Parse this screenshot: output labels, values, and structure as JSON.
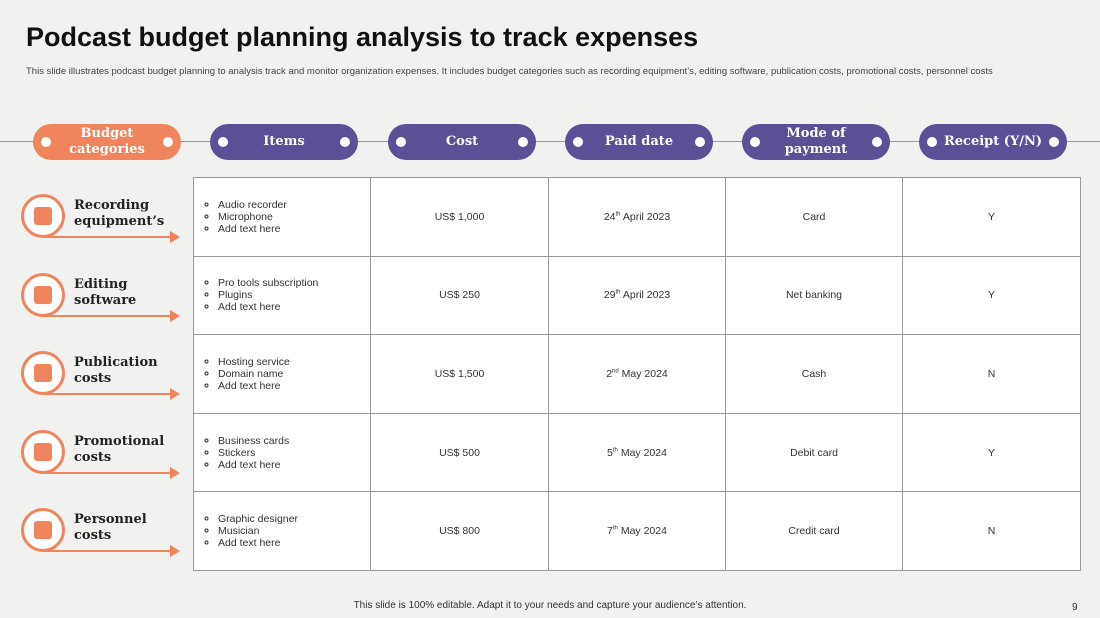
{
  "header": {
    "title": "Podcast budget planning analysis to track expenses",
    "subtitle": "This slide illustrates podcast budget planning to analysis track and monitor organization expenses. It includes budget categories such as recording equipment’s, editing software, publication costs, promotional costs, personnel costs"
  },
  "table": {
    "columns": [
      "Budget categories",
      "Items",
      "Cost",
      "Paid date",
      "Mode of payment",
      "Receipt (Y/N)"
    ],
    "rows": [
      {
        "category": "Recording equipment’s",
        "items": [
          "Audio recorder",
          "Microphone",
          "Add text here"
        ],
        "cost": "US$ 1,000",
        "date": {
          "day": "24",
          "suffix": "th",
          "rest": "April 2023"
        },
        "mode": "Card",
        "receipt": "Y"
      },
      {
        "category": "Editing software",
        "items": [
          "Pro tools subscription",
          "Plugins",
          "Add text here"
        ],
        "cost": "US$ 250",
        "date": {
          "day": "29",
          "suffix": "th",
          "rest": "April 2023"
        },
        "mode": "Net banking",
        "receipt": "Y"
      },
      {
        "category": "Publication costs",
        "items": [
          "Hosting service",
          "Domain name",
          "Add text here"
        ],
        "cost": "US$ 1,500",
        "date": {
          "day": "2",
          "suffix": "nd",
          "rest": "May 2024"
        },
        "mode": "Cash",
        "receipt": "N"
      },
      {
        "category": "Promotional costs",
        "items": [
          "Business cards",
          "Stickers",
          "Add text here"
        ],
        "cost": "US$ 500",
        "date": {
          "day": "5",
          "suffix": "th",
          "rest": "May 2024"
        },
        "mode": "Debit card",
        "receipt": "Y"
      },
      {
        "category": "Personnel costs",
        "items": [
          "Graphic designer",
          "Musician",
          "Add text here"
        ],
        "cost": "US$ 800",
        "date": {
          "day": "7",
          "suffix": "th",
          "rest": "May 2024"
        },
        "mode": "Credit card",
        "receipt": "N"
      }
    ]
  },
  "footer": {
    "note": "This slide is 100% editable. Adapt it to your needs and capture your audience’s attention.",
    "page": "9"
  }
}
